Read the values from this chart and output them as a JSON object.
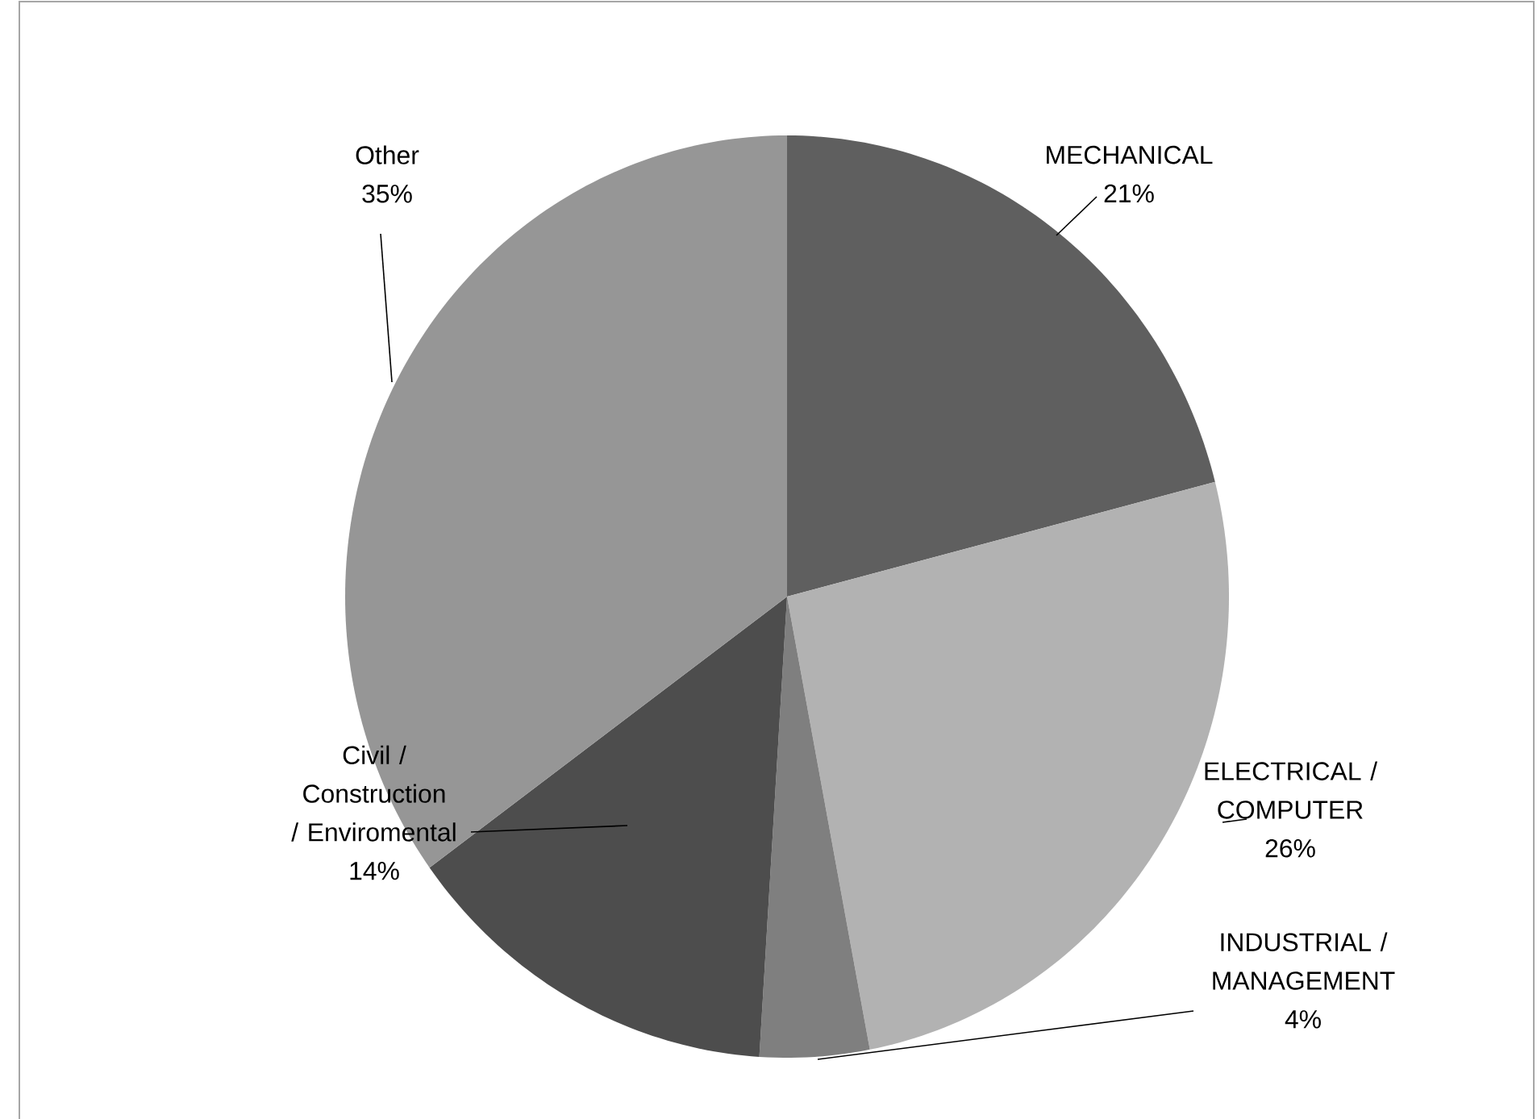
{
  "chart_data": {
    "type": "pie",
    "categories": [
      "MECHANICAL",
      "ELECTRICAL / COMPUTER",
      "INDUSTRIAL / MANAGEMENT",
      "Civil / Construction / Enviromental",
      "Other"
    ],
    "values": [
      21,
      26,
      4,
      14,
      35
    ],
    "colors": [
      "#5f5f5f",
      "#b2b2b2",
      "#7f7f7f",
      "#4d4d4d",
      "#969696"
    ],
    "value_labels": [
      "21%",
      "26%",
      "4%",
      "14%",
      "35%"
    ]
  }
}
